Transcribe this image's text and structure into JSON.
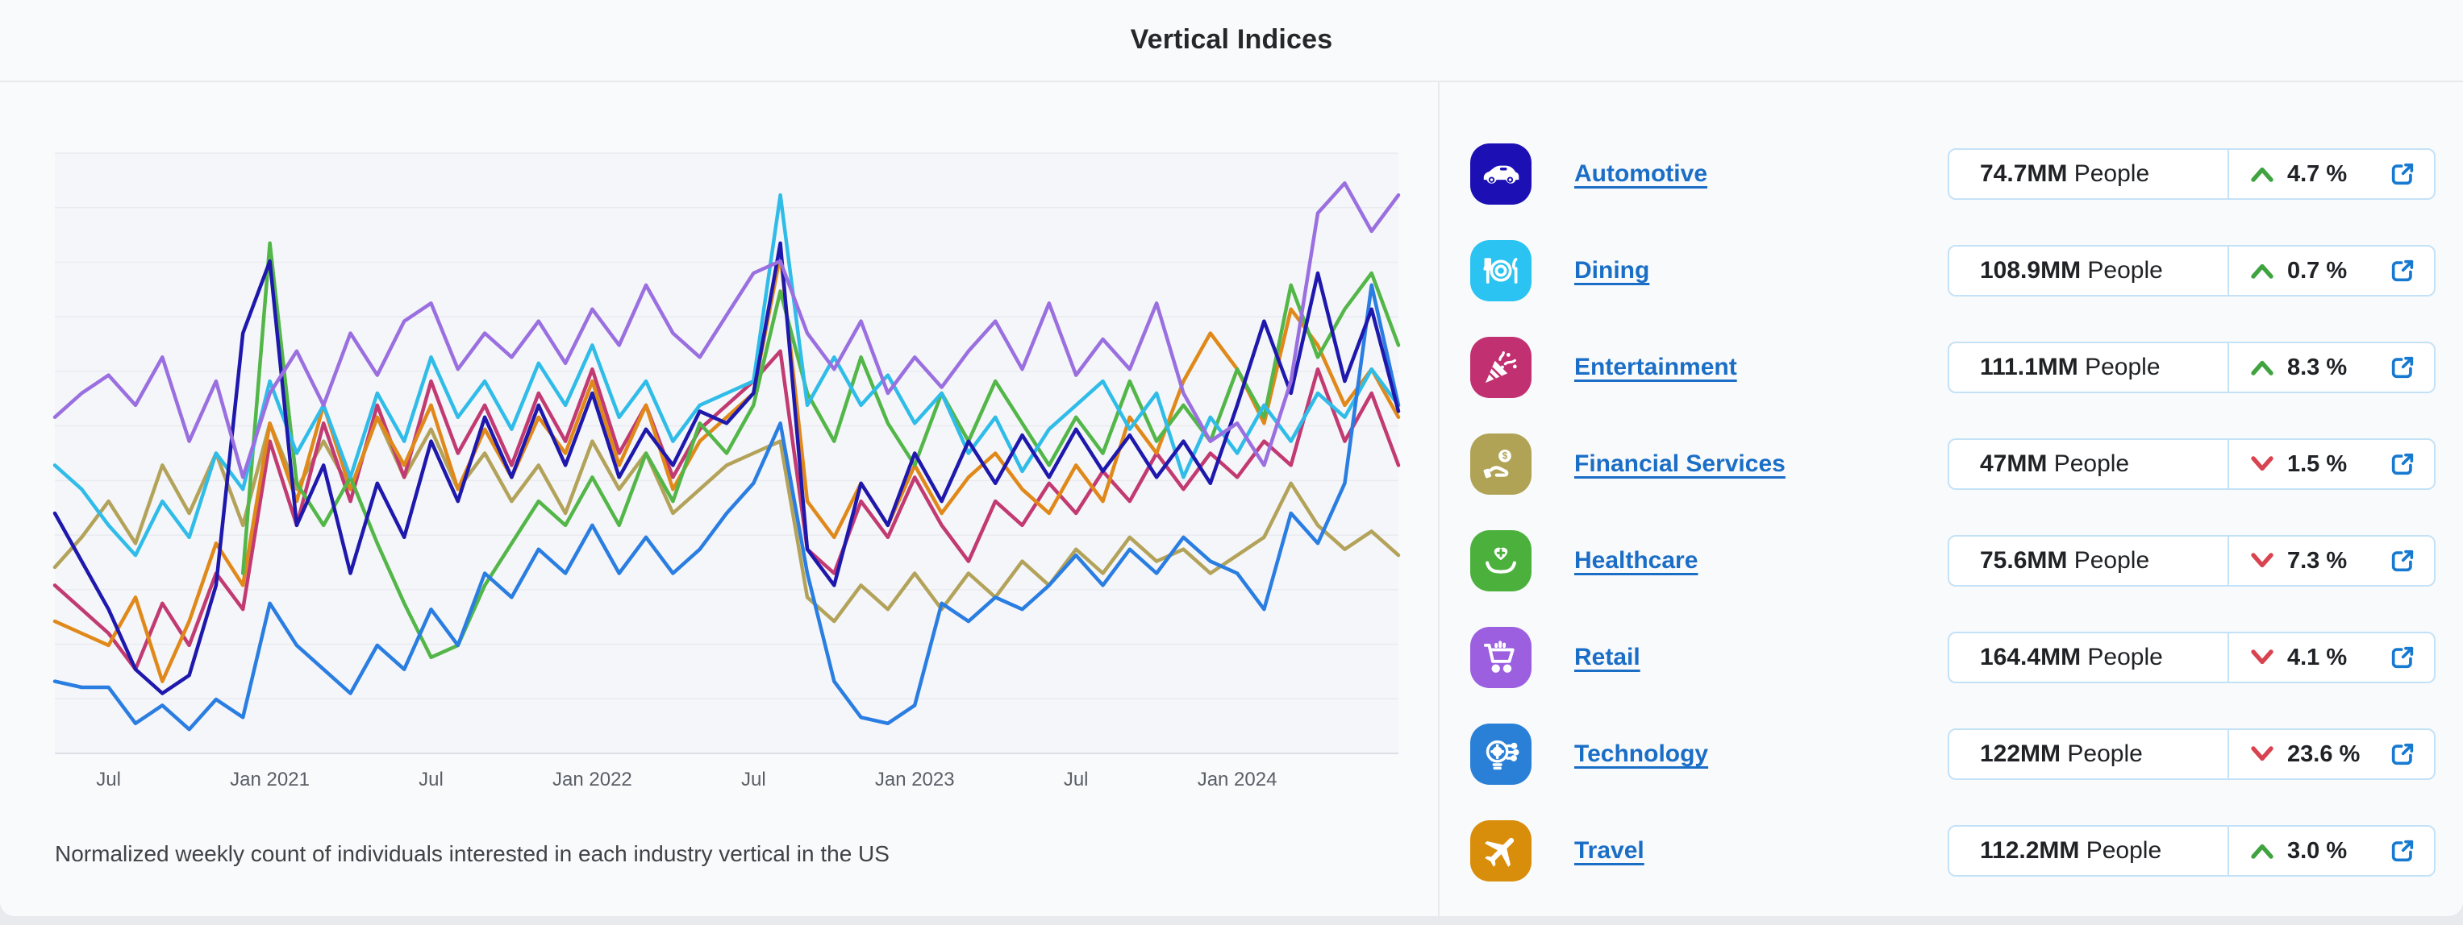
{
  "header": {
    "title": "Vertical Indices"
  },
  "theme": {
    "link_color": "#1b6ec6",
    "up_color": "#3fa33f",
    "down_color": "#d9434f",
    "card_border": "#c4e2f7",
    "external_icon_color": "#1779d0"
  },
  "chart_data": {
    "type": "line",
    "title": "Vertical Indices",
    "caption": "Normalized weekly count of individuals interested in each industry vertical in the US",
    "x_ticks": [
      {
        "label": "Jul",
        "pos": 0.04
      },
      {
        "label": "Jan 2021",
        "pos": 0.16
      },
      {
        "label": "Jul",
        "pos": 0.28
      },
      {
        "label": "Jan 2022",
        "pos": 0.4
      },
      {
        "label": "Jul",
        "pos": 0.52
      },
      {
        "label": "Jan 2023",
        "pos": 0.64
      },
      {
        "label": "Jul",
        "pos": 0.76
      },
      {
        "label": "Jan 2024",
        "pos": 0.88
      }
    ],
    "x_range": "May 2020 to Jul 2024, monthly estimates of weekly data",
    "ylim": [
      0,
      100
    ],
    "y_axis": "normalized index (no labels, horizontal gridlines only)",
    "grid": true,
    "legend_position": "none (colors match vertical list icons)",
    "series": [
      {
        "name": "Financial Services",
        "color": "#b3a35a",
        "values": [
          31,
          36,
          42,
          35,
          48,
          40,
          50,
          38,
          55,
          44,
          52,
          44,
          56,
          46,
          54,
          44,
          50,
          42,
          48,
          40,
          52,
          44,
          50,
          40,
          44,
          48,
          50,
          52,
          26,
          22,
          28,
          24,
          30,
          24,
          30,
          26,
          32,
          28,
          34,
          30,
          36,
          32,
          34,
          30,
          33,
          36,
          45,
          38,
          34,
          37,
          33
        ]
      },
      {
        "name": "Entertainment",
        "color": "#c23a72",
        "values": [
          28,
          24,
          20,
          14,
          25,
          18,
          30,
          24,
          52,
          38,
          55,
          42,
          58,
          46,
          62,
          50,
          58,
          48,
          60,
          52,
          64,
          50,
          58,
          46,
          54,
          58,
          62,
          67,
          34,
          30,
          42,
          36,
          46,
          38,
          32,
          42,
          38,
          45,
          40,
          47,
          42,
          50,
          44,
          50,
          46,
          52,
          48,
          64,
          52,
          60,
          48
        ]
      },
      {
        "name": "Travel",
        "color": "#e0891a",
        "values": [
          22,
          20,
          18,
          26,
          12,
          22,
          35,
          28,
          55,
          42,
          58,
          44,
          56,
          48,
          58,
          44,
          54,
          46,
          56,
          50,
          62,
          48,
          58,
          44,
          52,
          56,
          60,
          83,
          42,
          36,
          45,
          38,
          48,
          40,
          46,
          50,
          44,
          40,
          48,
          42,
          56,
          50,
          62,
          70,
          64,
          55,
          74,
          68,
          58,
          64,
          56
        ]
      },
      {
        "name": "Healthcare",
        "color": "#53b648",
        "values": [
          null,
          null,
          null,
          null,
          null,
          null,
          null,
          30,
          85,
          45,
          38,
          46,
          35,
          25,
          16,
          18,
          28,
          35,
          42,
          38,
          46,
          38,
          50,
          42,
          55,
          50,
          58,
          77,
          60,
          52,
          66,
          55,
          48,
          60,
          52,
          62,
          55,
          48,
          56,
          50,
          62,
          52,
          58,
          52,
          64,
          56,
          78,
          66,
          74,
          80,
          68
        ]
      },
      {
        "name": "Dining",
        "color": "#30bce8",
        "values": [
          48,
          44,
          38,
          33,
          42,
          36,
          50,
          44,
          62,
          50,
          58,
          46,
          60,
          52,
          66,
          56,
          62,
          54,
          65,
          58,
          68,
          56,
          62,
          52,
          58,
          60,
          62,
          93,
          58,
          66,
          58,
          63,
          55,
          60,
          50,
          56,
          47,
          54,
          58,
          62,
          54,
          60,
          46,
          56,
          50,
          58,
          52,
          60,
          56,
          64,
          58
        ]
      },
      {
        "name": "Technology",
        "color": "#2a7de1",
        "values": [
          12,
          11,
          11,
          5,
          8,
          4,
          9,
          6,
          25,
          18,
          14,
          10,
          18,
          14,
          24,
          18,
          30,
          26,
          34,
          30,
          38,
          30,
          36,
          30,
          34,
          40,
          45,
          55,
          30,
          12,
          6,
          5,
          8,
          25,
          22,
          26,
          24,
          28,
          33,
          28,
          34,
          30,
          36,
          32,
          30,
          24,
          40,
          35,
          45,
          78,
          58
        ]
      },
      {
        "name": "Automotive",
        "color": "#1e18ad",
        "values": [
          40,
          32,
          24,
          14,
          10,
          13,
          28,
          70,
          82,
          38,
          48,
          30,
          45,
          36,
          52,
          42,
          56,
          46,
          58,
          48,
          60,
          46,
          54,
          48,
          57,
          55,
          60,
          85,
          34,
          28,
          45,
          38,
          50,
          42,
          52,
          45,
          53,
          46,
          54,
          47,
          53,
          46,
          52,
          45,
          58,
          72,
          60,
          80,
          62,
          74,
          57
        ]
      },
      {
        "name": "Retail",
        "color": "#9a6fe0",
        "values": [
          56,
          60,
          63,
          58,
          66,
          52,
          62,
          46,
          60,
          67,
          58,
          70,
          63,
          72,
          75,
          64,
          70,
          66,
          72,
          65,
          74,
          68,
          78,
          70,
          66,
          73,
          80,
          82,
          70,
          64,
          72,
          60,
          66,
          61,
          67,
          72,
          64,
          75,
          63,
          69,
          64,
          75,
          60,
          52,
          55,
          48,
          62,
          90,
          95,
          87,
          93
        ]
      }
    ]
  },
  "panel": {
    "unit": "People",
    "rows": [
      {
        "label": "Automotive",
        "icon": "car-icon",
        "icon_bg": "#1c10b4",
        "value": "74.7MM",
        "unit": "People",
        "change": "4.7 %",
        "direction": "up"
      },
      {
        "label": "Dining",
        "icon": "dining-icon",
        "icon_bg": "#2ac3f2",
        "value": "108.9MM",
        "unit": "People",
        "change": "0.7 %",
        "direction": "up"
      },
      {
        "label": "Entertainment",
        "icon": "party-popper-icon",
        "icon_bg": "#c13070",
        "value": "111.1MM",
        "unit": "People",
        "change": "8.3 %",
        "direction": "up"
      },
      {
        "label": "Financial Services",
        "icon": "hand-coin-icon",
        "icon_bg": "#b0a355",
        "value": "47MM",
        "unit": "People",
        "change": "1.5 %",
        "direction": "down"
      },
      {
        "label": "Healthcare",
        "icon": "hands-heart-icon",
        "icon_bg": "#4cb13c",
        "value": "75.6MM",
        "unit": "People",
        "change": "7.3 %",
        "direction": "down"
      },
      {
        "label": "Retail",
        "icon": "shopping-cart-icon",
        "icon_bg": "#9b5fe0",
        "value": "164.4MM",
        "unit": "People",
        "change": "4.1 %",
        "direction": "down"
      },
      {
        "label": "Technology",
        "icon": "bulb-gear-icon",
        "icon_bg": "#2a80d6",
        "value": "122MM",
        "unit": "People",
        "change": "23.6 %",
        "direction": "down"
      },
      {
        "label": "Travel",
        "icon": "plane-icon",
        "icon_bg": "#d98e0b",
        "value": "112.2MM",
        "unit": "People",
        "change": "3.0 %",
        "direction": "up"
      }
    ]
  }
}
